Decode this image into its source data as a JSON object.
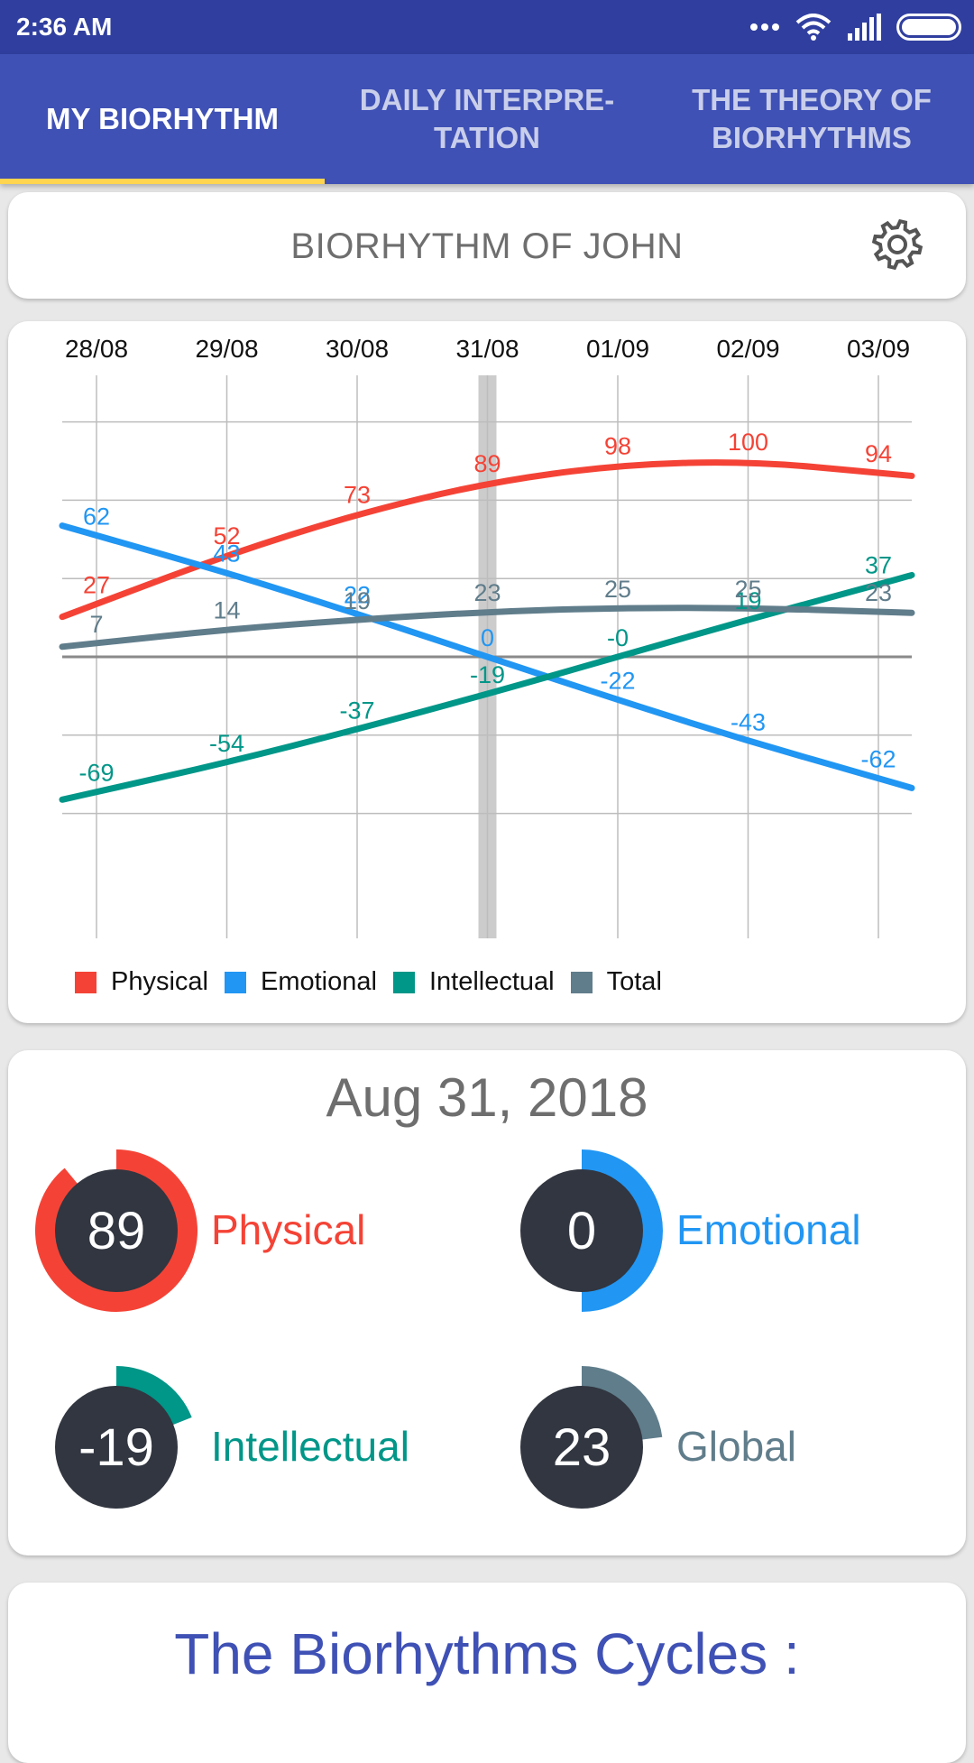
{
  "status_bar": {
    "time": "2:36 AM"
  },
  "tabs": [
    {
      "label": "MY BIORHYTHM",
      "active": true
    },
    {
      "label": "DAILY INTERPRE- TATION",
      "active": false
    },
    {
      "label": "THE THEORY OF BIORHYTHMS",
      "active": false
    }
  ],
  "header": {
    "title": "BIORHYTHM OF JOHN"
  },
  "chart_data": {
    "type": "line",
    "x": [
      "28/08",
      "29/08",
      "30/08",
      "31/08",
      "01/09",
      "02/09",
      "03/09"
    ],
    "highlight_x": "31/08",
    "ylim": [
      -100,
      100
    ],
    "grid": true,
    "legend_placement": "bottom-left",
    "series": [
      {
        "name": "Physical",
        "color": "#f44336",
        "values": [
          27,
          52,
          73,
          89,
          98,
          100,
          94
        ],
        "labels": [
          "27",
          "52",
          "73",
          "89",
          "98",
          "100",
          "94"
        ]
      },
      {
        "name": "Emotional",
        "color": "#2196f3",
        "values": [
          62,
          43,
          22,
          0,
          -22,
          -43,
          -62
        ],
        "labels": [
          "62",
          "43",
          "22",
          "0",
          "-22",
          "-43",
          "-62"
        ]
      },
      {
        "name": "Intellectual",
        "color": "#009688",
        "values": [
          -69,
          -54,
          -37,
          -19,
          0,
          19,
          37
        ],
        "labels": [
          "-69",
          "-54",
          "-37",
          "-19",
          "-0",
          "19",
          "37"
        ]
      },
      {
        "name": "Total",
        "color": "#607d8b",
        "values": [
          7,
          14,
          19,
          23,
          25,
          25,
          23
        ],
        "labels": [
          "7",
          "14",
          "19",
          "23",
          "25",
          "25",
          "23"
        ]
      }
    ]
  },
  "summary": {
    "date": "Aug 31, 2018",
    "items": [
      {
        "label": "Physical",
        "value": "89",
        "level": 89,
        "color": "#f44336"
      },
      {
        "label": "Emotional",
        "value": "0",
        "level": 0,
        "color": "#2196f3"
      },
      {
        "label": "Intellectual",
        "value": "-19",
        "level": -19,
        "color": "#009688"
      },
      {
        "label": "Global",
        "value": "23",
        "level": 23,
        "color": "#607d8b"
      }
    ]
  },
  "cycles": {
    "title": "The Biorhythms Cycles :"
  }
}
